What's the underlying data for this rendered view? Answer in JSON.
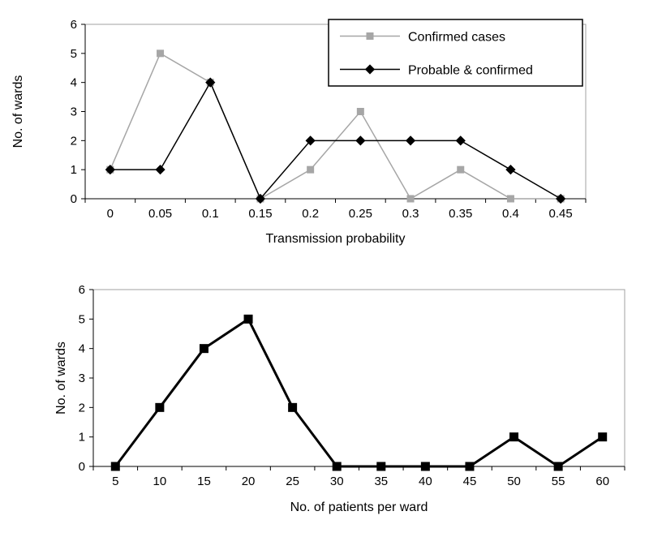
{
  "figure": {
    "background_color": "#ffffff",
    "plot_border_color": "#a0a0a0",
    "axis_color": "#000000"
  },
  "chart_data": [
    {
      "type": "line",
      "title": "",
      "xlabel": "Transmission probability",
      "ylabel": "No. of wards",
      "categories": [
        "0",
        "0.05",
        "0.1",
        "0.15",
        "0.2",
        "0.25",
        "0.3",
        "0.35",
        "0.4",
        "0.45"
      ],
      "series": [
        {
          "name": "Confirmed cases",
          "marker": "square",
          "color": "#a6a6a6",
          "values": [
            1,
            5,
            4,
            0,
            1,
            3,
            0,
            1,
            0,
            0
          ]
        },
        {
          "name": "Probable & confirmed",
          "marker": "diamond",
          "color": "#000000",
          "values": [
            1,
            1,
            4,
            0,
            2,
            2,
            2,
            2,
            1,
            0
          ]
        }
      ],
      "ylim": [
        0,
        6
      ],
      "yticks": [
        0,
        1,
        2,
        3,
        4,
        5,
        6
      ],
      "grid": false,
      "legend": "top-right"
    },
    {
      "type": "line",
      "title": "",
      "xlabel": "No. of patients per ward",
      "ylabel": "No. of wards",
      "categories": [
        "5",
        "10",
        "15",
        "20",
        "25",
        "30",
        "35",
        "40",
        "45",
        "50",
        "55",
        "60"
      ],
      "series": [
        {
          "name": "",
          "marker": "square",
          "color": "#000000",
          "values": [
            0,
            2,
            4,
            5,
            2,
            0,
            0,
            0,
            0,
            1,
            0,
            1
          ]
        }
      ],
      "ylim": [
        0,
        6
      ],
      "yticks": [
        0,
        1,
        2,
        3,
        4,
        5,
        6
      ],
      "grid": false,
      "legend": "none"
    }
  ]
}
